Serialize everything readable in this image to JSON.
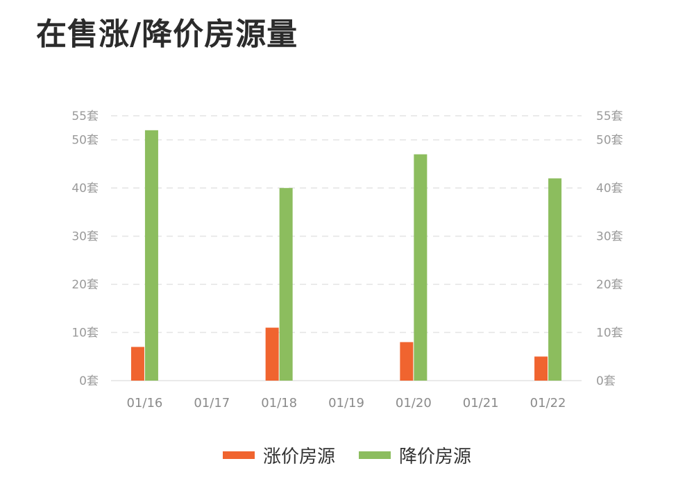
{
  "title": "在售涨/降价房源量",
  "chart_data": {
    "type": "bar",
    "categories": [
      "01/16",
      "01/17",
      "01/18",
      "01/19",
      "01/20",
      "01/21",
      "01/22"
    ],
    "series": [
      {
        "name": "涨价房源",
        "color": "#f0642f",
        "values": [
          7,
          null,
          11,
          null,
          8,
          null,
          5
        ]
      },
      {
        "name": "降价房源",
        "color": "#8cbd5e",
        "values": [
          52,
          null,
          40,
          null,
          47,
          null,
          42
        ]
      }
    ],
    "ylim": [
      0,
      55
    ],
    "yticks": [
      0,
      10,
      20,
      30,
      40,
      50,
      55
    ],
    "ytick_suffix": "套",
    "grid": true,
    "legend_position": "bottom-center"
  }
}
